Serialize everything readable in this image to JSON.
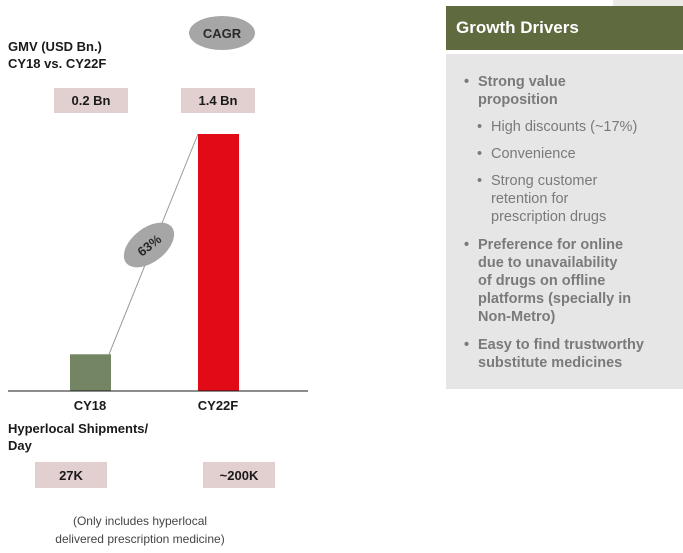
{
  "chart_data": {
    "type": "bar",
    "title": "GMV (USD Bn.)\nCY18 vs. CY22F",
    "categories": [
      "CY18",
      "CY22F"
    ],
    "values": [
      0.2,
      1.4
    ],
    "value_labels": [
      "0.2 Bn",
      "1.4 Bn"
    ],
    "ylim": [
      0,
      1.4
    ],
    "colors": [
      "#748563",
      "#e20a17"
    ],
    "grid": false,
    "cagr_label": "CAGR",
    "growth_label": "63%",
    "secondary_title": "Hyperlocal Shipments/\nDay",
    "secondary_values": [
      "27K",
      "~200K"
    ],
    "footnote": "(Only includes hyperlocal\ndelivered prescription medicine)"
  },
  "panel": {
    "header": "Growth Drivers",
    "bullets": [
      {
        "text": "Strong value\nproposition",
        "level": 1
      },
      {
        "text": "High discounts (~17%)",
        "level": 2
      },
      {
        "text": "Convenience",
        "level": 2
      },
      {
        "text": "Strong customer\nretention for\nprescription drugs",
        "level": 2
      },
      {
        "text": "Preference for online\ndue to  unavailability\nof drugs on offline\nplatforms (specially in\nNon-Metro)",
        "level": 1
      },
      {
        "text": "Easy to find trustworthy\nsubstitute medicines",
        "level": 1
      }
    ]
  },
  "colors": {
    "panel_header": "#5f6a3e",
    "panel_body": "#e6e6e6",
    "value_box": "#e2cfd0",
    "oval": "#a6a6a6"
  }
}
